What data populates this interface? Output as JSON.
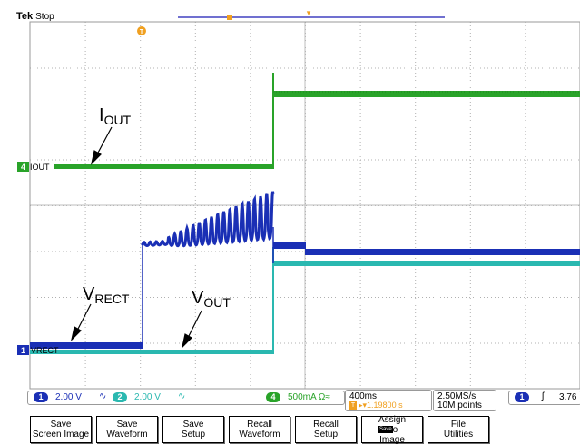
{
  "header": {
    "brand": "Tek",
    "state": "Stop"
  },
  "annotations": {
    "iout": "I",
    "iout_sub": "OUT",
    "vrect": "V",
    "vrect_sub": "RECT",
    "vout": "V",
    "vout_sub": "OUT"
  },
  "channel_markers": {
    "ch4_num": "4",
    "ch4_label": "IOUT",
    "ch1_num": "1",
    "ch1_label": "VRECT"
  },
  "status": {
    "ch1": {
      "num": "1",
      "scale": "2.00 V",
      "coupling": "∿"
    },
    "ch2": {
      "num": "2",
      "scale": "2.00 V",
      "coupling": "∿"
    },
    "ch4": {
      "num": "4",
      "scale": "500mA Ω≈"
    },
    "time": {
      "per_div": "400ms",
      "pos_icon": "T",
      "position": "▸▾1.19800 s"
    },
    "acq": {
      "rate": "2.50MS/s",
      "points": "10M points"
    },
    "trigger": {
      "num": "1",
      "slope": "ʃ",
      "level": "3.76"
    }
  },
  "menu": [
    {
      "label": "Save\nScreen Image"
    },
    {
      "label": "Save\nWaveform"
    },
    {
      "label": "Save\nSetup"
    },
    {
      "label": "Recall\nWaveform"
    },
    {
      "label": "Recall\nSetup"
    },
    {
      "label": "Assign\n  to\nImage",
      "inner": "Save"
    },
    {
      "label": "File\nUtilities"
    }
  ],
  "colors": {
    "ch1": "#1a2fb5",
    "ch2": "#2ab8b0",
    "ch4": "#29a329",
    "trigger": "#f0a020",
    "grid": "#c8c8c8"
  }
}
